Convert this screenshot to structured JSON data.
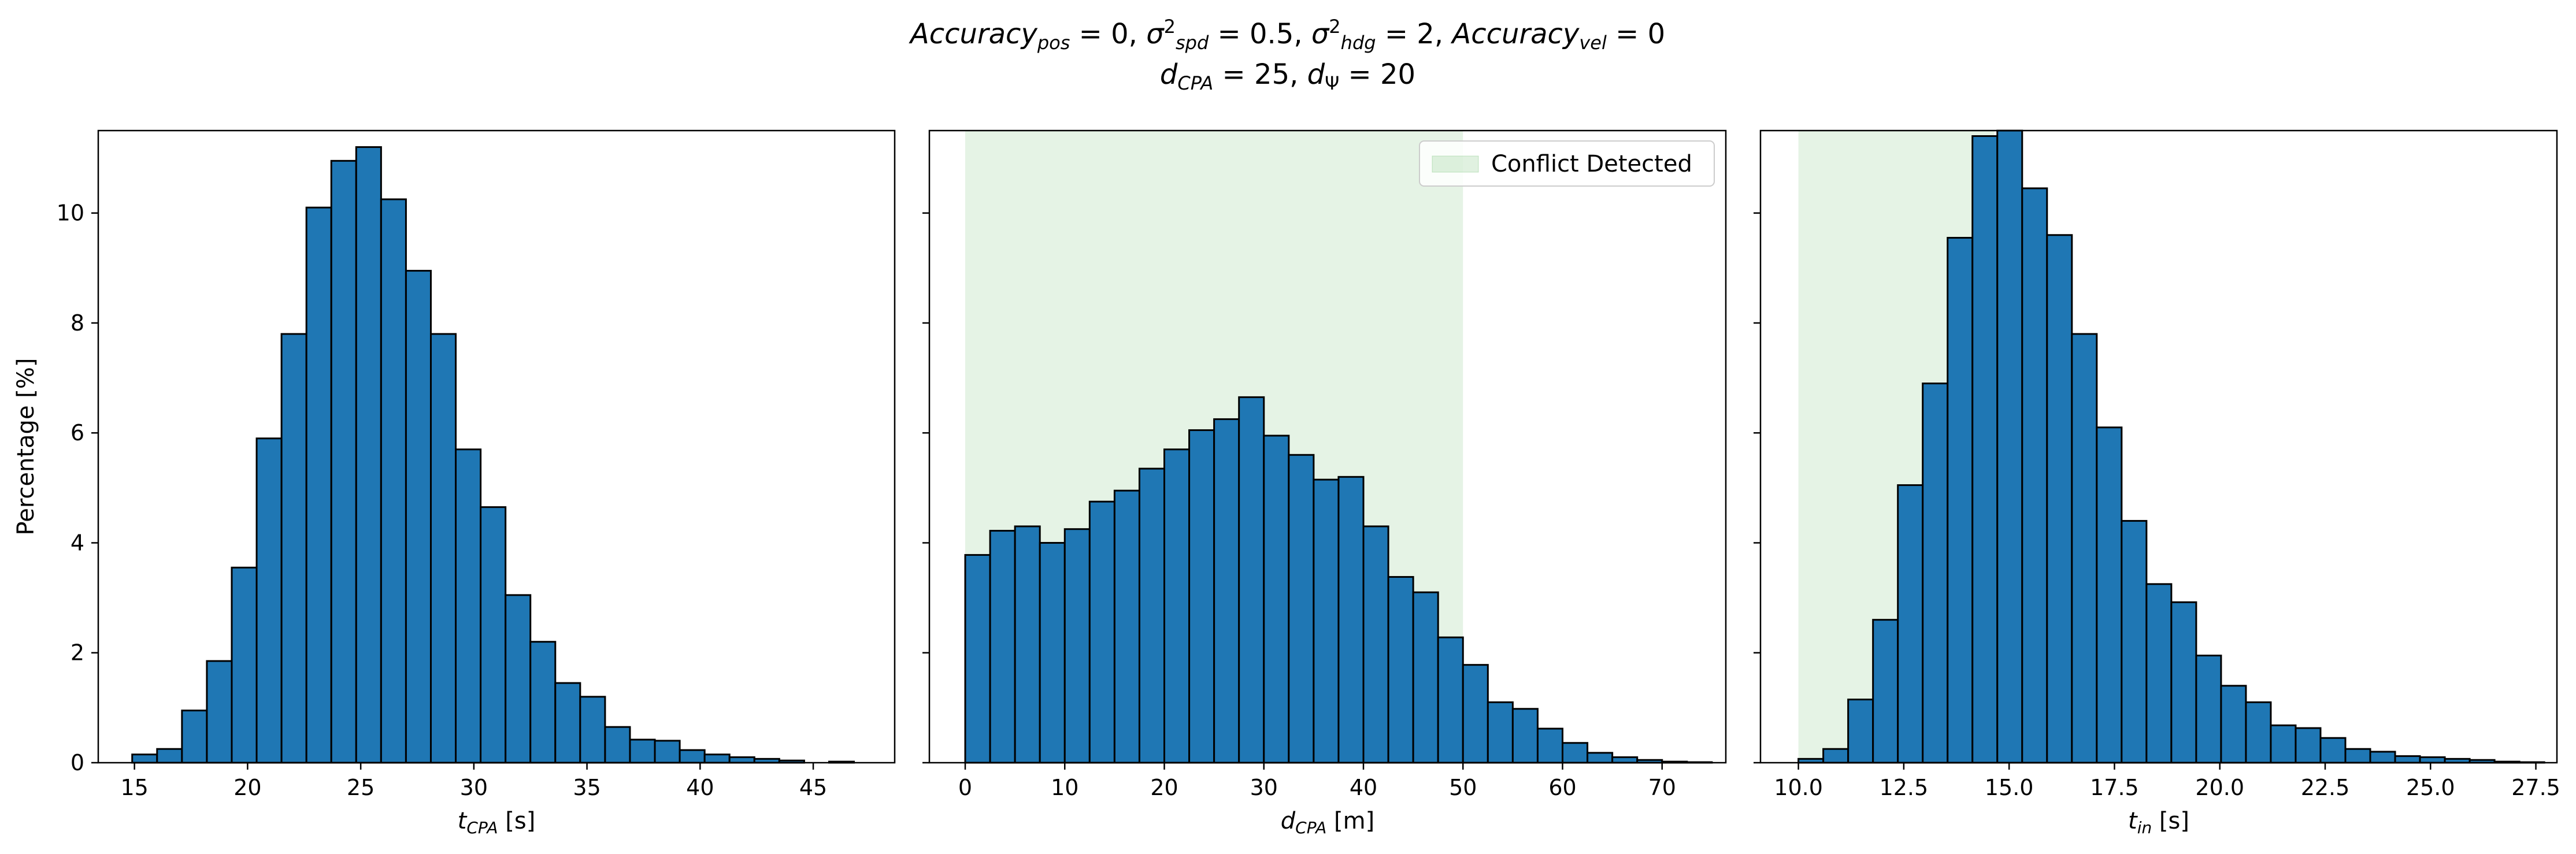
{
  "figure": {
    "title_line1": "Accuracy_pos = 0, σ²_spd = 0.5, σ²_hdg = 2, Accuracy_vel = 0",
    "title_line2": "d_CPA = 25, d_Ψ = 20"
  },
  "colors": {
    "bar_fill": "#1f77b4",
    "bar_edge": "#000000",
    "conflict_region": "#2ca02c"
  },
  "chart_data": [
    {
      "type": "bar",
      "subtype": "histogram",
      "xlabel": "t_CPA [s]",
      "ylabel": "Percentage [%]",
      "xlim": [
        13.4,
        48.6
      ],
      "ylim": [
        0,
        11.5
      ],
      "xticks": [
        15,
        20,
        25,
        30,
        35,
        40,
        45
      ],
      "yticks": [
        0,
        2,
        4,
        6,
        8,
        10
      ],
      "bin_width": 1.1,
      "bin_edges_start": 14.9,
      "values": [
        0.15,
        0.25,
        0.95,
        1.85,
        3.55,
        5.9,
        7.8,
        10.1,
        10.95,
        11.2,
        10.25,
        8.95,
        7.8,
        5.7,
        4.65,
        3.05,
        2.2,
        1.45,
        1.2,
        0.65,
        0.42,
        0.4,
        0.23,
        0.15,
        0.1,
        0.07,
        0.04,
        0.0,
        0.02
      ],
      "grid": false
    },
    {
      "type": "bar",
      "subtype": "histogram",
      "xlabel": "d_CPA [m]",
      "xlim": [
        -3.6,
        76.4
      ],
      "ylim": [
        0,
        11.5
      ],
      "xticks": [
        0,
        10,
        20,
        30,
        40,
        50,
        60,
        70
      ],
      "yticks": [
        0,
        2,
        4,
        6,
        8,
        10
      ],
      "bin_width": 2.5,
      "bin_edges_start": 0,
      "values": [
        3.78,
        4.22,
        4.3,
        4.0,
        4.25,
        4.75,
        4.95,
        5.35,
        5.7,
        6.05,
        6.25,
        6.65,
        5.95,
        5.6,
        5.15,
        5.2,
        4.3,
        3.38,
        3.1,
        2.28,
        1.78,
        1.1,
        0.98,
        0.62,
        0.36,
        0.18,
        0.1,
        0.05,
        0.02,
        0.01
      ],
      "shaded_region": {
        "from": 0,
        "to": 50,
        "label": "Conflict Detected"
      },
      "legend": {
        "location": "upper right",
        "entries": [
          "Conflict Detected"
        ]
      },
      "grid": false
    },
    {
      "type": "bar",
      "subtype": "histogram",
      "xlabel": "t_in [s]",
      "xlim": [
        9.1,
        28.0
      ],
      "ylim": [
        0,
        11.5
      ],
      "xticks": [
        10.0,
        12.5,
        15.0,
        17.5,
        20.0,
        22.5,
        25.0,
        27.5
      ],
      "xtick_labels": [
        "10.0",
        "12.5",
        "15.0",
        "17.5",
        "20.0",
        "22.5",
        "25.0",
        "27.5"
      ],
      "yticks": [
        0,
        2,
        4,
        6,
        8,
        10
      ],
      "bin_width": 0.59,
      "bin_edges_start": 10.0,
      "values": [
        0.07,
        0.25,
        1.15,
        2.6,
        5.05,
        6.9,
        9.55,
        11.4,
        11.5,
        10.45,
        9.6,
        7.8,
        6.1,
        4.4,
        3.25,
        2.92,
        1.95,
        1.4,
        1.1,
        0.68,
        0.63,
        0.45,
        0.25,
        0.2,
        0.12,
        0.1,
        0.07,
        0.05,
        0.02,
        0.01
      ],
      "shaded_region": {
        "from": 10.0,
        "to": 14.65
      },
      "grid": false
    }
  ]
}
